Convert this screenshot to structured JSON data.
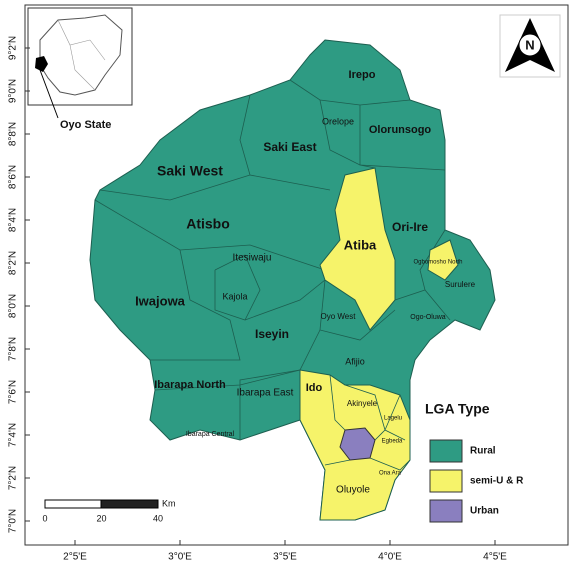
{
  "map": {
    "lat_ticks": [
      "9°2'N",
      "9°0'N",
      "8°8'N",
      "8°6'N",
      "8°4'N",
      "8°2'N",
      "8°0'N",
      "7°8'N",
      "7°6'N",
      "7°4'N",
      "7°2'N",
      "7°0'N"
    ],
    "lon_ticks": [
      "2°5'E",
      "3°0'E",
      "3°5'E",
      "4°0'E",
      "4°5'E"
    ],
    "north": "N",
    "inset_label": "Oyo State",
    "regions": [
      "Irepo",
      "Orelope",
      "Olorunsogo",
      "Saki East",
      "Saki West",
      "Atisbo",
      "Ori-Ire",
      "Atiba",
      "Itesiwaju",
      "Ogbomosho North",
      "Surulere",
      "Kajola",
      "Iwajowa",
      "Oyo West",
      "Ogo-Oluwa",
      "Iseyin",
      "Afijio",
      "Ibarapa North",
      "Ibarapa East",
      "Ido",
      "Akinyele",
      "Lagelu",
      "Egbeda",
      "Ona Ara",
      "Ibarapa Central",
      "Oluyole"
    ],
    "legend": {
      "title": "LGA Type",
      "items": [
        "Rural",
        "semi-U & R",
        "Urban"
      ]
    },
    "scale": {
      "labels": [
        "0",
        "20",
        "40"
      ],
      "unit": "Km"
    }
  }
}
